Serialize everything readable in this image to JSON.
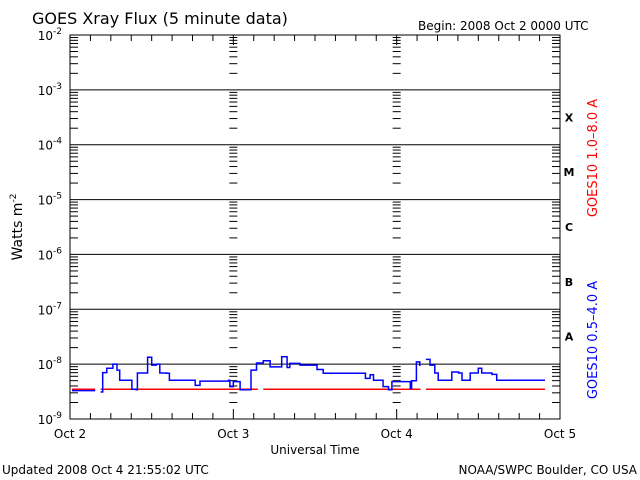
{
  "chart_data": {
    "type": "line",
    "title": "GOES Xray Flux (5 minute data)",
    "begin_label": "Begin:  2008 Oct 2 0000 UTC",
    "xlabel": "Universal Time",
    "ylabel": "Watts m",
    "ylabel_sup": "-2",
    "x_unit": "hours since 2008 Oct 2 0000 UTC",
    "xlim": [
      0,
      72
    ],
    "x_ticks": [
      {
        "hour": 0,
        "label": "Oct 2"
      },
      {
        "hour": 24,
        "label": "Oct 3"
      },
      {
        "hour": 48,
        "label": "Oct 4"
      },
      {
        "hour": 72,
        "label": "Oct 5"
      }
    ],
    "y_scale": "log",
    "ylim": [
      1e-09,
      0.01
    ],
    "y_ticks": [
      {
        "base": "10",
        "exp": "-2",
        "value": 0.01
      },
      {
        "base": "10",
        "exp": "-3",
        "value": 0.001
      },
      {
        "base": "10",
        "exp": "-4",
        "value": 0.0001
      },
      {
        "base": "10",
        "exp": "-5",
        "value": 1e-05
      },
      {
        "base": "10",
        "exp": "-6",
        "value": 1e-06
      },
      {
        "base": "10",
        "exp": "-7",
        "value": 1e-07
      },
      {
        "base": "10",
        "exp": "-8",
        "value": 1e-08
      },
      {
        "base": "10",
        "exp": "-9",
        "value": 1e-09
      }
    ],
    "flare_classes": [
      {
        "label": "X",
        "value": 0.000316
      },
      {
        "label": "M",
        "value": 3.16e-05
      },
      {
        "label": "C",
        "value": 3.16e-06
      },
      {
        "label": "B",
        "value": 3.16e-07
      },
      {
        "label": "A",
        "value": 3.16e-08
      }
    ],
    "grid": true,
    "series": [
      {
        "name": "GOES10 1.0–8.0 A",
        "color": "#ff0000",
        "segments": [
          [
            [
              0.3,
              3.5e-09
            ],
            [
              3.7,
              3.5e-09
            ]
          ],
          [
            [
              4.5,
              3.5e-09
            ],
            [
              27.6,
              3.5e-09
            ]
          ],
          [
            [
              28.4,
              3.5e-09
            ],
            [
              51.5,
              3.5e-09
            ]
          ],
          [
            [
              52.3,
              3.5e-09
            ],
            [
              69.8,
              3.5e-09
            ]
          ]
        ]
      },
      {
        "name": "GOES10 0.5–4.0 A",
        "color": "#0000ff",
        "segments": [
          [
            [
              0.3,
              3.3e-09
            ],
            [
              3.7,
              3.3e-09
            ]
          ],
          [
            [
              4.5,
              3.1e-09
            ],
            [
              4.8,
              7e-09
            ],
            [
              5.4,
              8.4e-09
            ],
            [
              6.3,
              1e-08
            ],
            [
              6.9,
              7.8e-09
            ],
            [
              7.3,
              5.1e-09
            ],
            [
              8.8,
              5.1e-09
            ],
            [
              9.1,
              3.5e-09
            ],
            [
              9.7,
              3.4e-09
            ],
            [
              9.9,
              6.9e-09
            ],
            [
              10.8,
              6.9e-09
            ],
            [
              11.4,
              1.34e-08
            ],
            [
              12.0,
              9.6e-09
            ],
            [
              12.7,
              1e-08
            ],
            [
              13.2,
              6.9e-09
            ],
            [
              14.2,
              6.8e-09
            ],
            [
              14.6,
              5.1e-09
            ],
            [
              18.1,
              5.1e-09
            ],
            [
              18.4,
              4.1e-09
            ],
            [
              19.1,
              4.9e-09
            ],
            [
              23.3,
              5.1e-09
            ],
            [
              23.5,
              3.9e-09
            ],
            [
              24.0,
              4.8e-09
            ],
            [
              25.0,
              3.4e-09
            ],
            [
              26.3,
              3.4e-09
            ],
            [
              26.6,
              7.8e-09
            ],
            [
              27.4,
              1.05e-08
            ],
            [
              28.4,
              1.15e-08
            ],
            [
              29.4,
              8.9e-09
            ],
            [
              31.1,
              1.36e-08
            ],
            [
              31.9,
              8.7e-09
            ],
            [
              32.3,
              1.03e-08
            ],
            [
              33.8,
              9.6e-09
            ],
            [
              35.3,
              9.6e-09
            ],
            [
              36.3,
              8e-09
            ],
            [
              37.2,
              6.8e-09
            ],
            [
              42.1,
              6.8e-09
            ],
            [
              43.4,
              5.5e-09
            ],
            [
              44.1,
              6.4e-09
            ],
            [
              44.6,
              5.1e-09
            ],
            [
              45.8,
              5.1e-09
            ],
            [
              46.0,
              3.9e-09
            ],
            [
              46.8,
              3.4e-09
            ],
            [
              47.3,
              4.8e-09
            ],
            [
              49.5,
              4.8e-09
            ],
            [
              50.0,
              3.6e-09
            ],
            [
              50.2,
              5e-09
            ],
            [
              50.9,
              1.1e-08
            ],
            [
              51.4,
              9.2e-09
            ]
          ],
          [
            [
              52.3,
              1.22e-08
            ],
            [
              52.9,
              9.6e-09
            ],
            [
              53.6,
              6.9e-09
            ],
            [
              54.1,
              5.1e-09
            ],
            [
              55.6,
              5.1e-09
            ],
            [
              56.1,
              7.2e-09
            ],
            [
              57.1,
              6.9e-09
            ],
            [
              57.6,
              5.1e-09
            ],
            [
              58.6,
              5.1e-09
            ],
            [
              58.8,
              6.9e-09
            ],
            [
              60.0,
              8.4e-09
            ],
            [
              60.5,
              6.9e-09
            ],
            [
              62.0,
              6.5e-09
            ],
            [
              62.7,
              5.1e-09
            ],
            [
              69.8,
              5.1e-09
            ]
          ]
        ]
      }
    ]
  },
  "footer": {
    "updated": "Updated 2008 Oct  4 21:55:02 UTC",
    "credit": "NOAA/SWPC Boulder, CO USA"
  }
}
